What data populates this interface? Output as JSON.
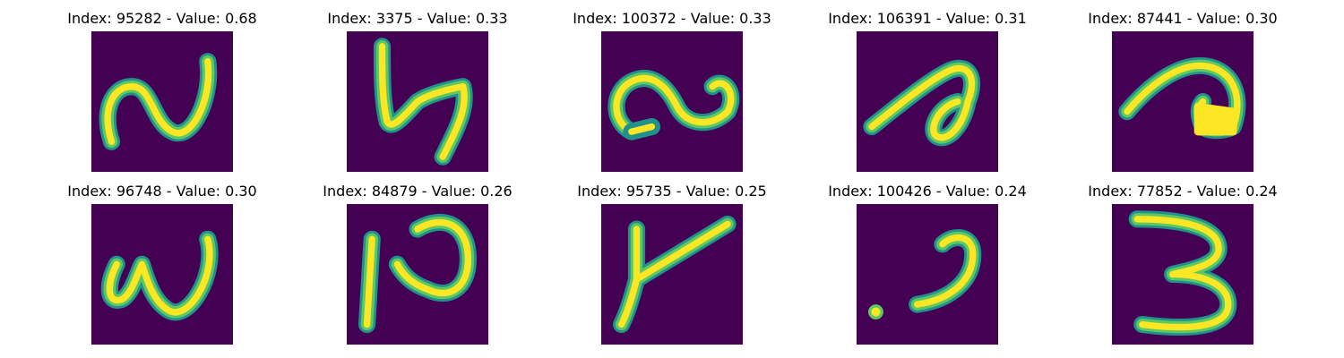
{
  "colors": {
    "background": "#440154",
    "stroke_edge": "#21918c",
    "stroke_mid": "#5ec962",
    "stroke_core": "#fde725"
  },
  "panels": [
    {
      "title": "Index: 95282 - Value: 0.68"
    },
    {
      "title": "Index: 3375 - Value: 0.33"
    },
    {
      "title": "Index: 100372 - Value: 0.33"
    },
    {
      "title": "Index: 106391 - Value: 0.31"
    },
    {
      "title": "Index: 87441 - Value: 0.30"
    },
    {
      "title": "Index: 96748 - Value: 0.30"
    },
    {
      "title": "Index: 84879 - Value: 0.26"
    },
    {
      "title": "Index: 95735 - Value: 0.25"
    },
    {
      "title": "Index: 100426 - Value: 0.24"
    },
    {
      "title": "Index: 77852 - Value: 0.24"
    }
  ]
}
